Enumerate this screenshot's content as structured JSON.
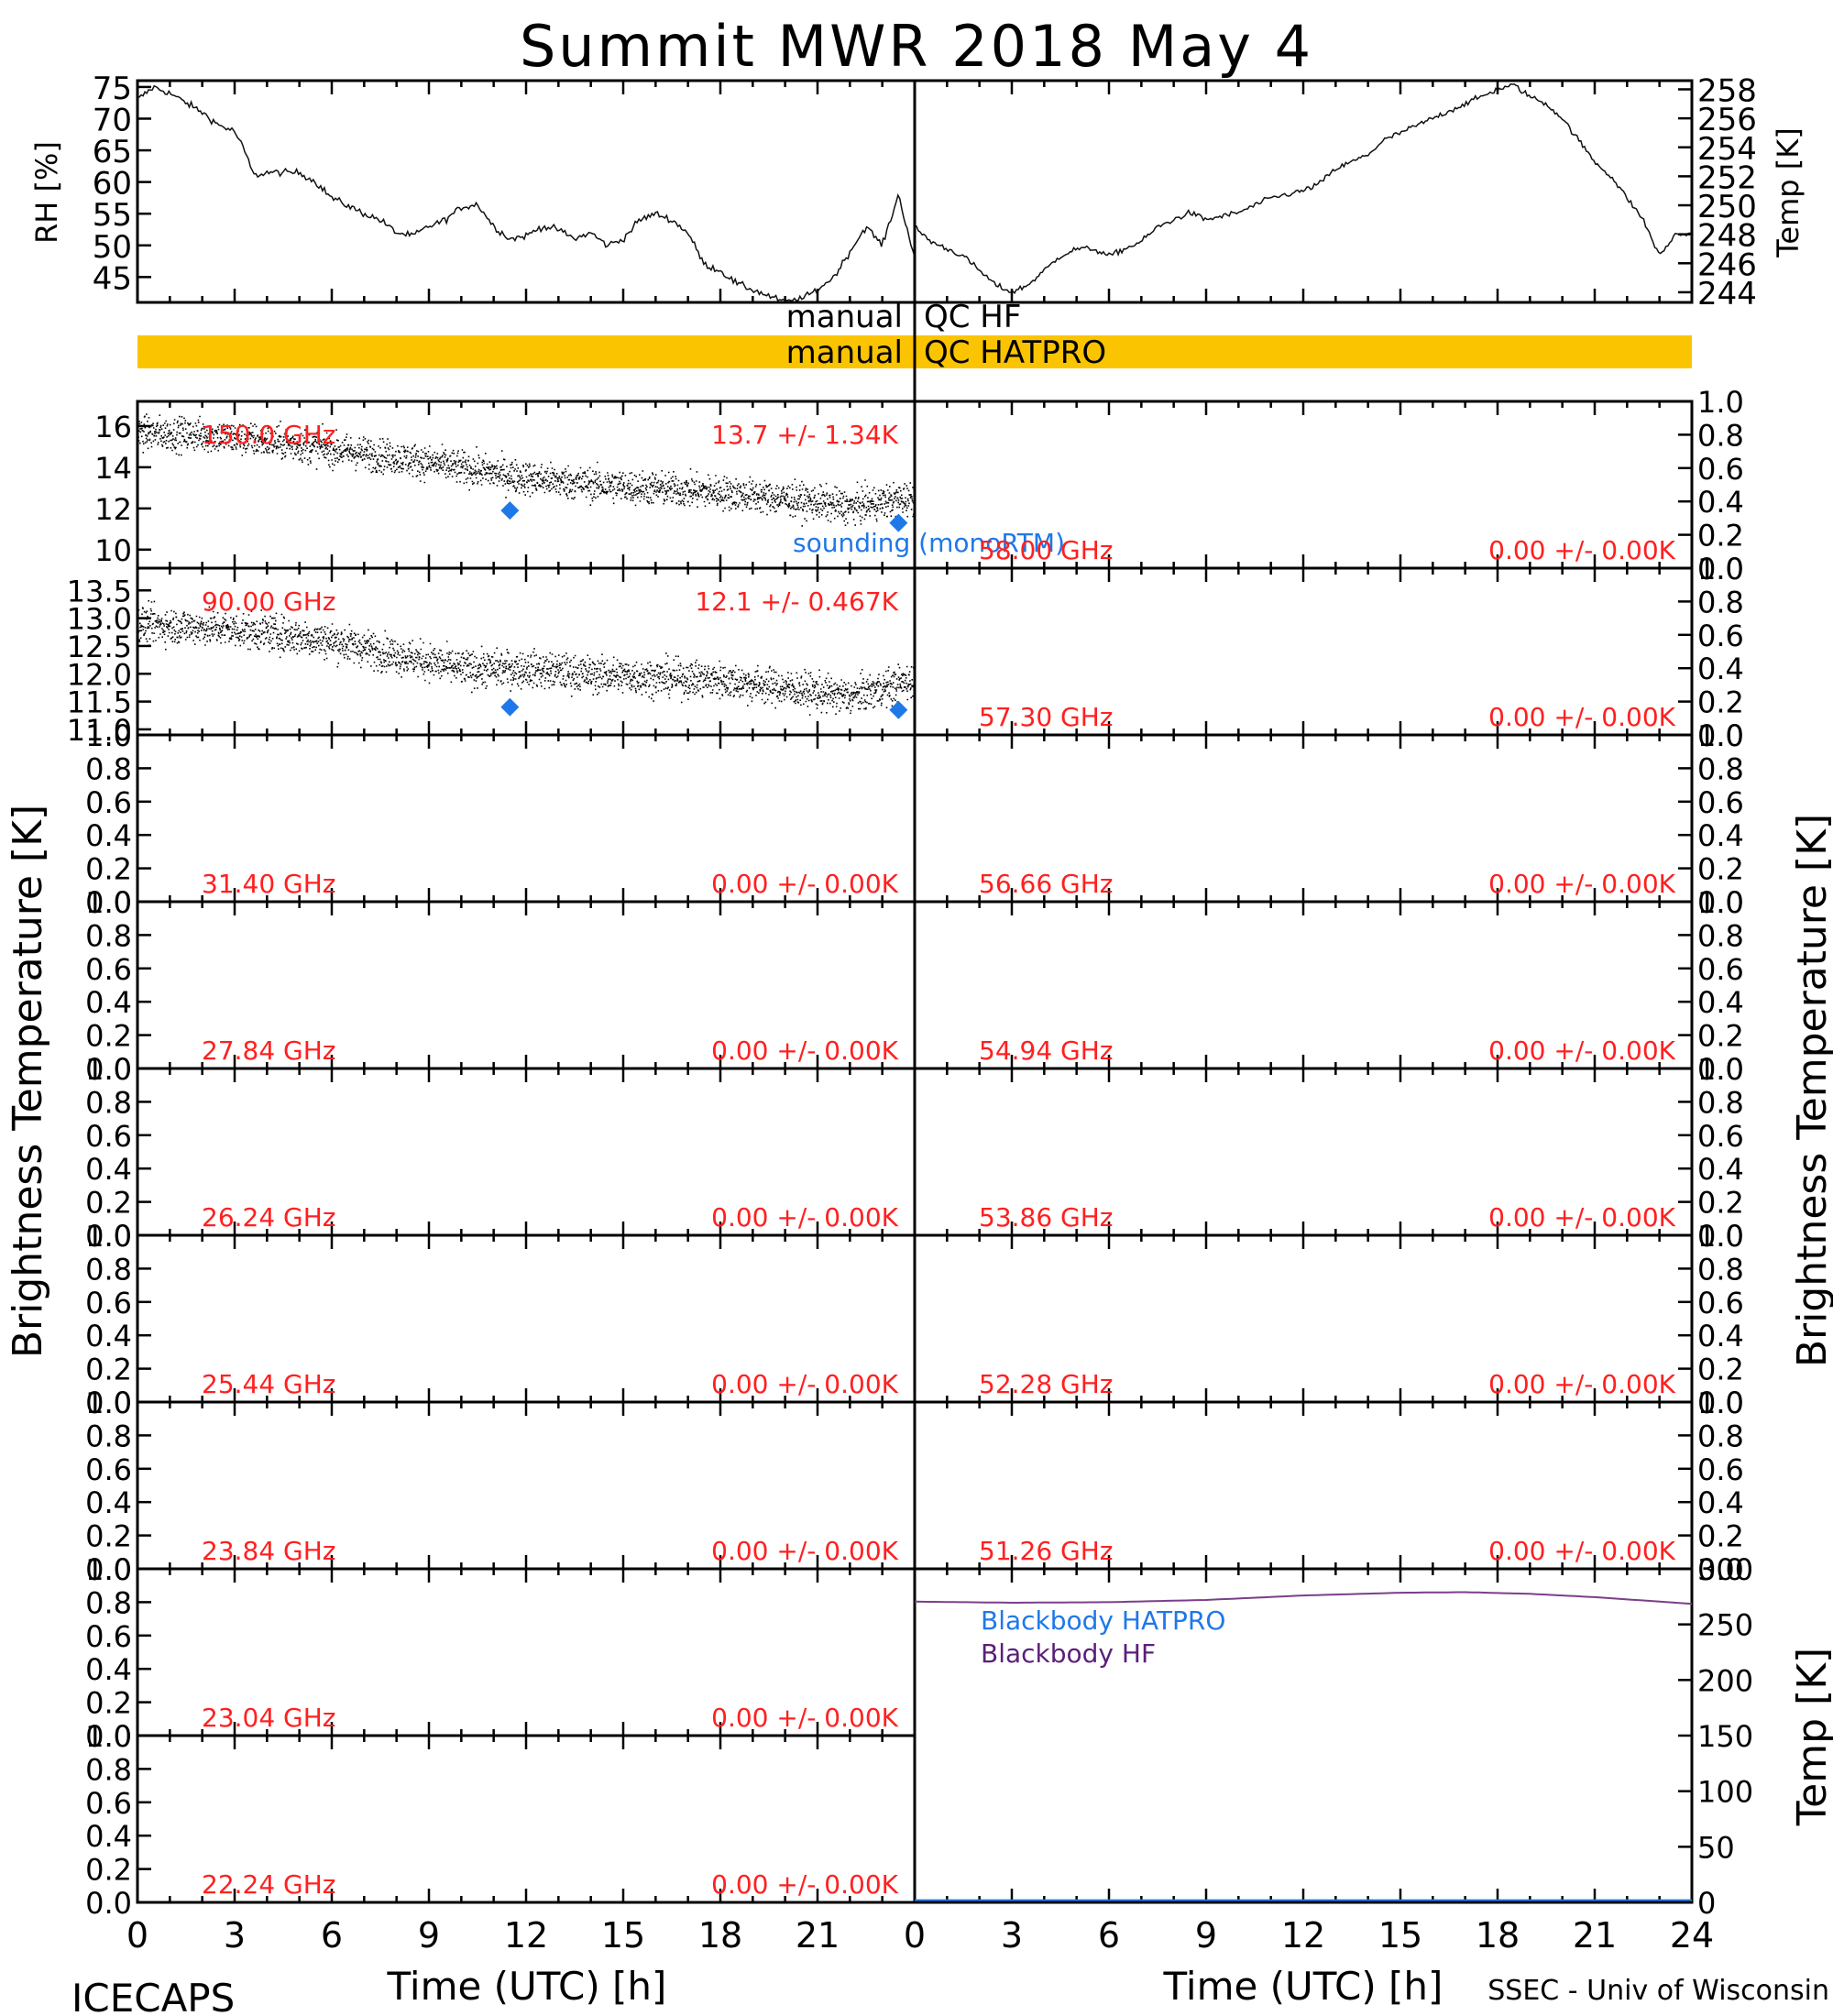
{
  "title": "Summit MWR 2018 May  4",
  "footer": {
    "left": "ICECAPS",
    "right": "SSEC - Univ of Wisconsin"
  },
  "x_axis": {
    "label": "Time (UTC) [h]",
    "left_ticks": [
      "0",
      "3",
      "6",
      "9",
      "12",
      "15",
      "18",
      "21"
    ],
    "right_ticks": [
      "0",
      "3",
      "6",
      "9",
      "12",
      "15",
      "18",
      "21",
      "24"
    ],
    "range": [
      0,
      24
    ]
  },
  "qc_bands": [
    {
      "label_left": "manual",
      "label_right": "QC HF",
      "flagged": false,
      "color": "#ffffff"
    },
    {
      "label_left": "manual",
      "label_right": "QC HATPRO",
      "flagged": true,
      "color": "#fbc400"
    }
  ],
  "side_labels": {
    "bt_left": "Brightness Temperature [K]",
    "bt_right": "Brightness Temperature [K]"
  },
  "chart_data": [
    {
      "type": "line",
      "id": "met",
      "left_axis": {
        "label": "RH [%]",
        "ticks": [
          "45",
          "50",
          "55",
          "60",
          "65",
          "70",
          "75"
        ],
        "range": [
          41,
          76
        ]
      },
      "right_axis": {
        "label": "Temp [K]",
        "ticks": [
          "244",
          "246",
          "248",
          "250",
          "252",
          "254",
          "256",
          "258"
        ],
        "range": [
          243.3,
          258.6
        ]
      },
      "series": [
        {
          "axis": "left",
          "x": [
            0,
            0.5,
            1,
            1.5,
            2,
            2.5,
            3,
            3.3,
            3.6,
            4,
            5,
            5.5,
            6,
            7,
            7.5,
            8,
            8.5,
            9,
            9.5,
            10,
            10.5,
            11,
            11.5,
            12,
            12.5,
            13,
            13.5,
            14,
            14.5,
            15,
            15.5,
            16,
            16.5,
            17,
            17.5,
            18,
            18.5,
            19,
            19.5,
            20,
            20.5,
            21,
            21.5,
            22,
            22.5,
            23,
            23.5,
            24
          ],
          "y": [
            73,
            75,
            74,
            72.5,
            71,
            69,
            68,
            65,
            61,
            61.5,
            61.5,
            60,
            57.5,
            55,
            54,
            52,
            51.5,
            53,
            54,
            56,
            56.5,
            53,
            51,
            51.5,
            53,
            52.5,
            51,
            52,
            50,
            51,
            54,
            55,
            54,
            52,
            47,
            46,
            44,
            43,
            42,
            41,
            41.5,
            43,
            45,
            49,
            53,
            50,
            58,
            48
          ]
        },
        {
          "axis": "right",
          "x": [
            0,
            0.5,
            1,
            1.5,
            2,
            2.5,
            3,
            3.5,
            4,
            4.5,
            5,
            5.5,
            6,
            6.5,
            7,
            7.5,
            8,
            8.5,
            9,
            10,
            11,
            12,
            12.5,
            13,
            13.5,
            14,
            14.5,
            15,
            15.5,
            16,
            16.5,
            17,
            17.5,
            18,
            18.5,
            19,
            19.5,
            20,
            20.5,
            21,
            21.5,
            22,
            22.5,
            23,
            23.5,
            24
          ],
          "y": [
            248.5,
            247.5,
            247,
            246.5,
            245.5,
            244.5,
            244,
            244.5,
            245.5,
            246.5,
            247,
            247,
            246.5,
            247,
            247.5,
            248.5,
            249,
            249.5,
            249,
            249.5,
            250.5,
            251,
            251.5,
            252.5,
            253,
            253.5,
            254.5,
            255,
            255.5,
            256,
            256.5,
            257,
            257.5,
            258,
            258.3,
            257.5,
            257,
            256,
            254.5,
            253,
            252,
            250.5,
            249,
            246.5,
            248,
            248
          ]
        }
      ]
    },
    {
      "type": "scatter",
      "id": "bt-150",
      "channel": "150.0 GHz",
      "stats": "13.7 +/-  1.34K",
      "left_ticks": [
        "10",
        "12",
        "14",
        "16"
      ],
      "range": [
        9.1,
        17.2
      ],
      "noise": 0.55,
      "trend": {
        "x": [
          0,
          2,
          4,
          6,
          8,
          10,
          12,
          14,
          16,
          18,
          20,
          22,
          24
        ],
        "y": [
          15.7,
          15.6,
          15.3,
          14.9,
          14.5,
          14.0,
          13.5,
          13.2,
          13.0,
          12.8,
          12.5,
          12.1,
          12.6
        ]
      },
      "sounding": {
        "x": [
          11.5,
          23.5
        ],
        "y": [
          11.9,
          11.3
        ]
      },
      "annotation": "sounding (monoRTM)"
    },
    {
      "type": "scatter",
      "id": "bt-90",
      "channel": "90.00 GHz",
      "stats": "12.1 +/- 0.467K",
      "left_ticks": [
        "11.0",
        "11.5",
        "12.0",
        "12.5",
        "13.0",
        "13.5"
      ],
      "range": [
        10.9,
        13.9
      ],
      "noise": 0.22,
      "trend": {
        "x": [
          0,
          2,
          4,
          6,
          8,
          10,
          12,
          14,
          16,
          18,
          20,
          22,
          24
        ],
        "y": [
          12.9,
          12.85,
          12.75,
          12.6,
          12.35,
          12.1,
          12.1,
          12.0,
          11.95,
          11.9,
          11.75,
          11.6,
          11.9
        ]
      },
      "sounding": {
        "x": [
          11.5,
          23.5
        ],
        "y": [
          11.4,
          11.35
        ]
      }
    },
    {
      "type": "scatter",
      "id": "bt-empty-l3",
      "channel": "31.40 GHz",
      "stats": "0.00 +/-  0.00K",
      "ticks": [
        "0.0",
        "0.2",
        "0.4",
        "0.6",
        "0.8",
        "1.0"
      ],
      "range": [
        0,
        1
      ]
    },
    {
      "type": "scatter",
      "id": "bt-empty-l4",
      "channel": "27.84 GHz",
      "stats": "0.00 +/-  0.00K",
      "ticks": [
        "0.0",
        "0.2",
        "0.4",
        "0.6",
        "0.8",
        "1.0"
      ],
      "range": [
        0,
        1
      ]
    },
    {
      "type": "scatter",
      "id": "bt-empty-l5",
      "channel": "26.24 GHz",
      "stats": "0.00 +/-  0.00K",
      "ticks": [
        "0.0",
        "0.2",
        "0.4",
        "0.6",
        "0.8",
        "1.0"
      ],
      "range": [
        0,
        1
      ]
    },
    {
      "type": "scatter",
      "id": "bt-empty-l6",
      "channel": "25.44 GHz",
      "stats": "0.00 +/-  0.00K",
      "ticks": [
        "0.0",
        "0.2",
        "0.4",
        "0.6",
        "0.8",
        "1.0"
      ],
      "range": [
        0,
        1
      ]
    },
    {
      "type": "scatter",
      "id": "bt-empty-l7",
      "channel": "23.84 GHz",
      "stats": "0.00 +/-  0.00K",
      "ticks": [
        "0.0",
        "0.2",
        "0.4",
        "0.6",
        "0.8",
        "1.0"
      ],
      "range": [
        0,
        1
      ]
    },
    {
      "type": "scatter",
      "id": "bt-empty-l8",
      "channel": "23.04 GHz",
      "stats": "0.00 +/-  0.00K",
      "ticks": [
        "0.0",
        "0.2",
        "0.4",
        "0.6",
        "0.8",
        "1.0"
      ],
      "range": [
        0,
        1
      ]
    },
    {
      "type": "scatter",
      "id": "bt-empty-l9",
      "channel": "22.24 GHz",
      "stats": "0.00 +/-  0.00K",
      "ticks": [
        "0.0",
        "0.2",
        "0.4",
        "0.6",
        "0.8",
        "1.0"
      ],
      "range": [
        0,
        1
      ]
    },
    {
      "type": "scatter",
      "id": "bt-empty-r1",
      "channel": "58.00 GHz",
      "stats": "0.00 +/-  0.00K",
      "ticks": [
        "0.0",
        "0.2",
        "0.4",
        "0.6",
        "0.8",
        "1.0"
      ],
      "range": [
        0,
        1
      ]
    },
    {
      "type": "scatter",
      "id": "bt-empty-r2",
      "channel": "57.30 GHz",
      "stats": "0.00 +/-  0.00K",
      "ticks": [
        "0.0",
        "0.2",
        "0.4",
        "0.6",
        "0.8",
        "1.0"
      ],
      "range": [
        0,
        1
      ]
    },
    {
      "type": "scatter",
      "id": "bt-empty-r3",
      "channel": "56.66 GHz",
      "stats": "0.00 +/-  0.00K",
      "ticks": [
        "0.0",
        "0.2",
        "0.4",
        "0.6",
        "0.8",
        "1.0"
      ],
      "range": [
        0,
        1
      ]
    },
    {
      "type": "scatter",
      "id": "bt-empty-r4",
      "channel": "54.94 GHz",
      "stats": "0.00 +/-  0.00K",
      "ticks": [
        "0.0",
        "0.2",
        "0.4",
        "0.6",
        "0.8",
        "1.0"
      ],
      "range": [
        0,
        1
      ]
    },
    {
      "type": "scatter",
      "id": "bt-empty-r5",
      "channel": "53.86 GHz",
      "stats": "0.00 +/-  0.00K",
      "ticks": [
        "0.0",
        "0.2",
        "0.4",
        "0.6",
        "0.8",
        "1.0"
      ],
      "range": [
        0,
        1
      ]
    },
    {
      "type": "scatter",
      "id": "bt-empty-r6",
      "channel": "52.28 GHz",
      "stats": "0.00 +/-  0.00K",
      "ticks": [
        "0.0",
        "0.2",
        "0.4",
        "0.6",
        "0.8",
        "1.0"
      ],
      "range": [
        0,
        1
      ]
    },
    {
      "type": "scatter",
      "id": "bt-empty-r7",
      "channel": "51.26 GHz",
      "stats": "0.00 +/-  0.00K",
      "ticks": [
        "0.0",
        "0.2",
        "0.4",
        "0.6",
        "0.8",
        "1.0"
      ],
      "range": [
        0,
        1
      ]
    },
    {
      "type": "line",
      "id": "blackbody",
      "right_axis": {
        "label": "Temp [K]",
        "ticks": [
          "0",
          "50",
          "100",
          "150",
          "200",
          "250",
          "300"
        ],
        "range": [
          0,
          300
        ]
      },
      "series": [
        {
          "name": "Blackbody HATPRO",
          "color": "#1f78e8",
          "x": [
            0,
            4,
            8,
            12,
            16,
            20,
            24
          ],
          "y": [
            2,
            2,
            2,
            2,
            2,
            2,
            2
          ]
        },
        {
          "name": "Blackbody HF",
          "color": "#7b3f8a",
          "x": [
            0,
            3,
            6,
            9,
            12,
            15,
            17,
            19,
            21,
            24
          ],
          "y": [
            270.5,
            269.5,
            270,
            272,
            276,
            278.5,
            279,
            277.5,
            274.5,
            268.5
          ]
        }
      ]
    }
  ]
}
